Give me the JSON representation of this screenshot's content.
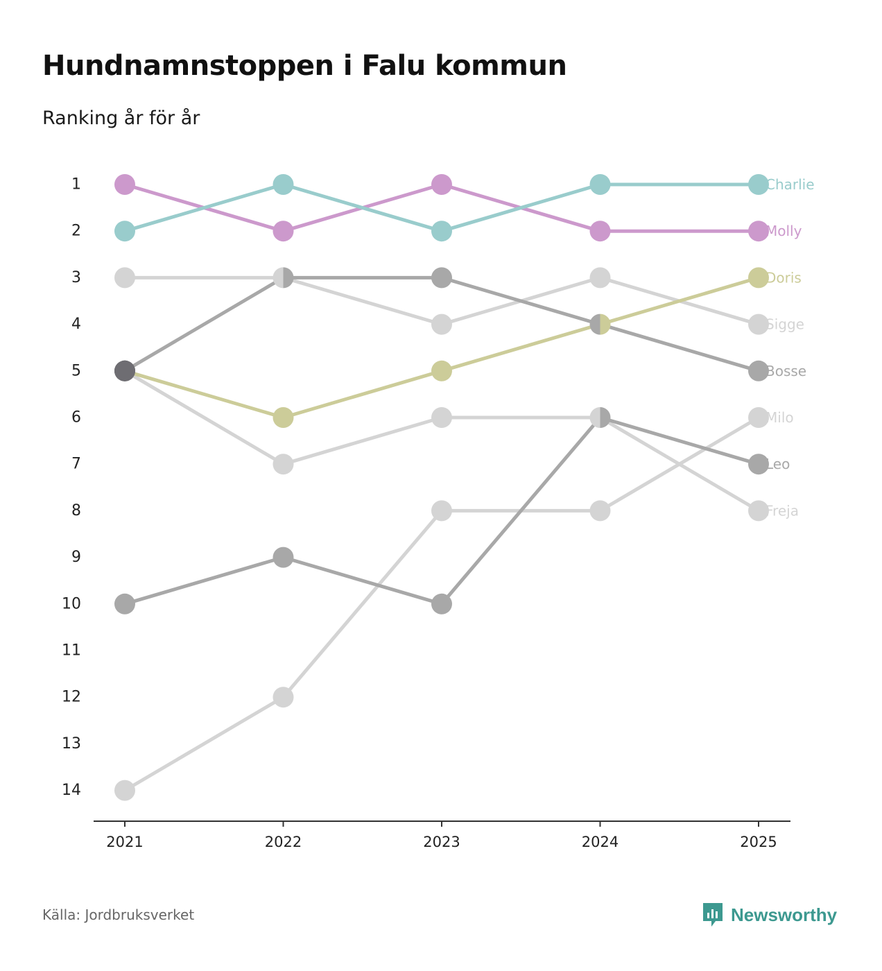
{
  "header": {
    "title": "Hundnamnstoppen i Falu kommun",
    "subtitle": "Ranking år för år"
  },
  "footer": {
    "source": "Källa: Jordbruksverket",
    "brand": "Newsworthy"
  },
  "colors": {
    "Charlie": "#99cccc",
    "Molly": "#cc99cc",
    "Doris": "#cccc99",
    "Sigge": "#d4d4d4",
    "Bosse": "#a8a8a8",
    "Milo": "#d4d4d4",
    "Leo": "#a8a8a8",
    "Freja": "#d4d4d4",
    "overlap": "#6e6d72",
    "brand": "#3d9990"
  },
  "chart_data": {
    "type": "line",
    "title": "Hundnamnstoppen i Falu kommun",
    "subtitle": "Ranking år för år",
    "xlabel": "",
    "ylabel": "",
    "categories": [
      "2021",
      "2022",
      "2023",
      "2024",
      "2025"
    ],
    "y_ticks": [
      "1",
      "2",
      "3",
      "4",
      "5",
      "6",
      "7",
      "8",
      "9",
      "10",
      "11",
      "12",
      "13",
      "14"
    ],
    "ylim": [
      1,
      14
    ],
    "y_inverted": true,
    "series": [
      {
        "name": "Charlie",
        "values": [
          2,
          1,
          2,
          1,
          1
        ]
      },
      {
        "name": "Molly",
        "values": [
          1,
          2,
          1,
          2,
          2
        ]
      },
      {
        "name": "Doris",
        "values": [
          5,
          6,
          5,
          4,
          3
        ]
      },
      {
        "name": "Sigge",
        "values": [
          3,
          3,
          4,
          3,
          4
        ]
      },
      {
        "name": "Bosse",
        "values": [
          5,
          3,
          3,
          4,
          5
        ]
      },
      {
        "name": "Milo",
        "values": [
          14,
          12,
          8,
          8,
          6
        ]
      },
      {
        "name": "Leo",
        "values": [
          10,
          9,
          10,
          6,
          7
        ]
      },
      {
        "name": "Freja",
        "values": [
          5,
          7,
          6,
          6,
          8
        ]
      }
    ]
  }
}
